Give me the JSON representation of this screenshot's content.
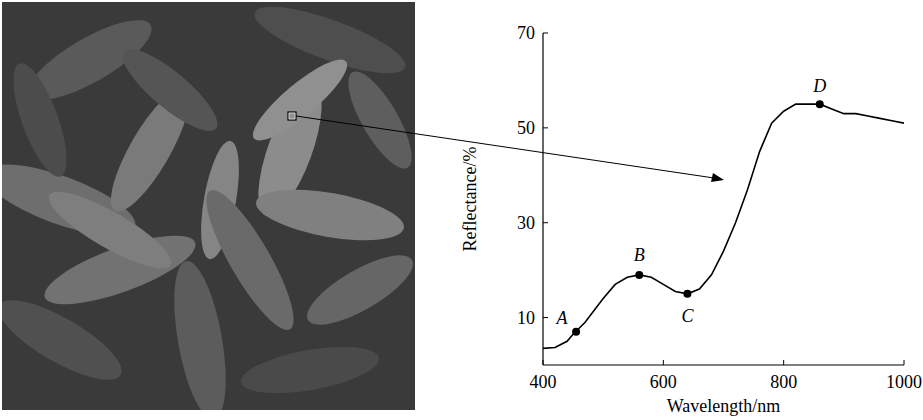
{
  "chart_data": {
    "type": "line",
    "x_label": "Wavelength/nm",
    "y_label": "Reflectance/%",
    "x": [
      400,
      420,
      440,
      450,
      470,
      500,
      520,
      540,
      560,
      580,
      600,
      620,
      640,
      660,
      680,
      700,
      720,
      740,
      760,
      780,
      800,
      820,
      840,
      860,
      880,
      900,
      920,
      940,
      960,
      980,
      1000
    ],
    "values": [
      3.5,
      3.7,
      5,
      6.5,
      9,
      14,
      17,
      18.5,
      19,
      18.5,
      17,
      15.5,
      15,
      16,
      19,
      24,
      30,
      37,
      45,
      51,
      53.5,
      55,
      55,
      55,
      54,
      53,
      53,
      52.5,
      52,
      51.5,
      51
    ],
    "color": "#000000",
    "annotations": [
      {
        "label": "A",
        "x": 455,
        "y": 7
      },
      {
        "label": "B",
        "x": 560,
        "y": 19
      },
      {
        "label": "C",
        "x": 640,
        "y": 15
      },
      {
        "label": "D",
        "x": 860,
        "y": 55
      }
    ],
    "xlim": [
      400,
      1000
    ],
    "xticks": [
      400,
      600,
      800,
      1000
    ],
    "ylim": [
      0,
      70
    ],
    "yticks": [
      10,
      30,
      50,
      70
    ],
    "grid": false
  }
}
